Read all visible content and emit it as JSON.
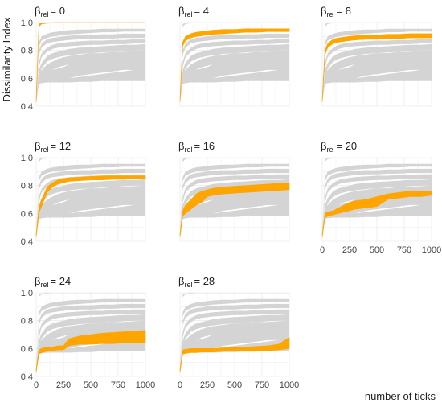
{
  "figure": {
    "ylabel": "Dissimilarity Index",
    "xlabel": "number of ticks"
  },
  "style": {
    "highlight_color": "#FFA500",
    "background_band_color": "#d4d4d4",
    "grid_color": "#ebebeb"
  },
  "chart_data": {
    "type": "area",
    "xlim": [
      0,
      1000
    ],
    "ylim": [
      0.4,
      1.0
    ],
    "x_ticks": [
      0,
      250,
      500,
      750,
      1000
    ],
    "y_ticks": [
      0.4,
      0.6,
      0.8,
      1.0
    ],
    "y_tick_labels": [
      "0.4",
      "0.6",
      "0.8",
      "1.0"
    ],
    "x": [
      0,
      25,
      50,
      100,
      150,
      200,
      250,
      300,
      400,
      500,
      600,
      700,
      800,
      900,
      1000
    ],
    "background_bands": [
      {
        "lower": [
          0.43,
          0.97,
          0.99,
          0.995,
          0.997,
          0.998,
          0.998,
          0.999,
          0.999,
          0.999,
          0.999,
          0.999,
          0.999,
          0.999,
          0.999
        ],
        "upper": [
          0.45,
          0.99,
          0.995,
          0.998,
          0.999,
          1.0,
          1.0,
          1.0,
          1.0,
          1.0,
          1.0,
          1.0,
          1.0,
          1.0,
          1.0
        ]
      },
      {
        "lower": [
          0.43,
          0.83,
          0.87,
          0.89,
          0.9,
          0.905,
          0.91,
          0.915,
          0.92,
          0.925,
          0.93,
          0.93,
          0.935,
          0.935,
          0.935
        ],
        "upper": [
          0.45,
          0.86,
          0.9,
          0.92,
          0.93,
          0.935,
          0.94,
          0.945,
          0.95,
          0.95,
          0.955,
          0.955,
          0.955,
          0.955,
          0.955
        ]
      },
      {
        "lower": [
          0.43,
          0.77,
          0.82,
          0.85,
          0.86,
          0.865,
          0.87,
          0.875,
          0.88,
          0.88,
          0.885,
          0.885,
          0.89,
          0.89,
          0.89
        ],
        "upper": [
          0.45,
          0.8,
          0.85,
          0.88,
          0.89,
          0.895,
          0.9,
          0.905,
          0.91,
          0.91,
          0.915,
          0.915,
          0.92,
          0.92,
          0.92
        ]
      },
      {
        "lower": [
          0.43,
          0.68,
          0.75,
          0.79,
          0.81,
          0.82,
          0.825,
          0.83,
          0.835,
          0.84,
          0.84,
          0.845,
          0.845,
          0.85,
          0.85
        ],
        "upper": [
          0.45,
          0.72,
          0.78,
          0.82,
          0.84,
          0.85,
          0.855,
          0.86,
          0.865,
          0.87,
          0.87,
          0.875,
          0.875,
          0.88,
          0.88
        ]
      },
      {
        "lower": [
          0.43,
          0.62,
          0.67,
          0.72,
          0.74,
          0.75,
          0.76,
          0.765,
          0.775,
          0.78,
          0.785,
          0.79,
          0.795,
          0.8,
          0.8
        ],
        "upper": [
          0.45,
          0.66,
          0.71,
          0.76,
          0.78,
          0.79,
          0.8,
          0.81,
          0.82,
          0.825,
          0.83,
          0.835,
          0.84,
          0.84,
          0.845
        ]
      },
      {
        "lower": [
          0.43,
          0.6,
          0.61,
          0.63,
          0.66,
          0.68,
          0.69,
          0.7,
          0.71,
          0.72,
          0.72,
          0.73,
          0.73,
          0.735,
          0.74
        ],
        "upper": [
          0.45,
          0.64,
          0.66,
          0.7,
          0.72,
          0.74,
          0.75,
          0.76,
          0.77,
          0.78,
          0.78,
          0.79,
          0.79,
          0.795,
          0.8
        ]
      },
      {
        "lower": [
          0.43,
          0.58,
          0.59,
          0.6,
          0.61,
          0.62,
          0.63,
          0.64,
          0.66,
          0.67,
          0.68,
          0.69,
          0.69,
          0.7,
          0.7
        ],
        "upper": [
          0.45,
          0.61,
          0.62,
          0.64,
          0.66,
          0.67,
          0.68,
          0.7,
          0.72,
          0.73,
          0.74,
          0.75,
          0.75,
          0.76,
          0.76
        ]
      },
      {
        "lower": [
          0.43,
          0.57,
          0.575,
          0.58,
          0.58,
          0.58,
          0.58,
          0.6,
          0.62,
          0.63,
          0.64,
          0.65,
          0.66,
          0.66,
          0.66
        ],
        "upper": [
          0.45,
          0.6,
          0.61,
          0.62,
          0.63,
          0.64,
          0.64,
          0.66,
          0.68,
          0.69,
          0.7,
          0.71,
          0.71,
          0.72,
          0.72
        ]
      },
      {
        "lower": [
          0.43,
          0.56,
          0.565,
          0.57,
          0.57,
          0.57,
          0.57,
          0.57,
          0.575,
          0.575,
          0.58,
          0.58,
          0.58,
          0.58,
          0.58
        ],
        "upper": [
          0.45,
          0.6,
          0.6,
          0.6,
          0.6,
          0.6,
          0.6,
          0.6,
          0.61,
          0.62,
          0.63,
          0.64,
          0.65,
          0.66,
          0.67
        ]
      }
    ],
    "panels": [
      {
        "label_base": "β",
        "label_sub": "rel",
        "label_value": "= 0",
        "lower": [
          0.43,
          0.97,
          0.99,
          0.995,
          0.997,
          0.998,
          0.998,
          0.999,
          0.999,
          0.999,
          0.999,
          0.999,
          0.999,
          0.999,
          0.999
        ],
        "upper": [
          0.45,
          0.99,
          0.995,
          0.998,
          0.999,
          1.0,
          1.0,
          1.0,
          1.0,
          1.0,
          1.0,
          1.0,
          1.0,
          1.0,
          1.0
        ]
      },
      {
        "label_base": "β",
        "label_sub": "rel",
        "label_value": "= 4",
        "lower": [
          0.43,
          0.83,
          0.87,
          0.89,
          0.9,
          0.905,
          0.91,
          0.915,
          0.92,
          0.925,
          0.93,
          0.93,
          0.935,
          0.935,
          0.935
        ],
        "upper": [
          0.45,
          0.86,
          0.9,
          0.92,
          0.93,
          0.935,
          0.94,
          0.945,
          0.95,
          0.95,
          0.955,
          0.955,
          0.955,
          0.955,
          0.955
        ]
      },
      {
        "label_base": "β",
        "label_sub": "rel",
        "label_value": "= 8",
        "lower": [
          0.43,
          0.77,
          0.82,
          0.85,
          0.86,
          0.865,
          0.87,
          0.875,
          0.88,
          0.88,
          0.885,
          0.885,
          0.89,
          0.89,
          0.89
        ],
        "upper": [
          0.45,
          0.8,
          0.85,
          0.88,
          0.89,
          0.895,
          0.9,
          0.905,
          0.91,
          0.91,
          0.915,
          0.915,
          0.92,
          0.92,
          0.92
        ]
      },
      {
        "label_base": "β",
        "label_sub": "rel",
        "label_value": "= 12",
        "lower": [
          0.43,
          0.6,
          0.65,
          0.75,
          0.79,
          0.81,
          0.82,
          0.83,
          0.835,
          0.84,
          0.84,
          0.845,
          0.845,
          0.85,
          0.85
        ],
        "upper": [
          0.45,
          0.64,
          0.7,
          0.79,
          0.82,
          0.84,
          0.85,
          0.855,
          0.86,
          0.865,
          0.87,
          0.87,
          0.87,
          0.87,
          0.87
        ]
      },
      {
        "label_base": "β",
        "label_sub": "rel",
        "label_value": "= 16",
        "lower": [
          0.43,
          0.58,
          0.6,
          0.63,
          0.66,
          0.68,
          0.72,
          0.73,
          0.74,
          0.745,
          0.75,
          0.755,
          0.76,
          0.765,
          0.77
        ],
        "upper": [
          0.45,
          0.62,
          0.66,
          0.7,
          0.74,
          0.76,
          0.77,
          0.78,
          0.79,
          0.795,
          0.8,
          0.805,
          0.81,
          0.815,
          0.82
        ]
      },
      {
        "label_base": "β",
        "label_sub": "rel",
        "label_value": "= 20",
        "lower": [
          0.43,
          0.57,
          0.58,
          0.59,
          0.6,
          0.61,
          0.62,
          0.63,
          0.64,
          0.65,
          0.7,
          0.71,
          0.72,
          0.72,
          0.73
        ],
        "upper": [
          0.45,
          0.6,
          0.61,
          0.62,
          0.64,
          0.66,
          0.68,
          0.69,
          0.7,
          0.72,
          0.74,
          0.75,
          0.76,
          0.76,
          0.76
        ]
      },
      {
        "label_base": "β",
        "label_sub": "rel",
        "label_value": "= 24",
        "lower": [
          0.43,
          0.56,
          0.57,
          0.58,
          0.585,
          0.59,
          0.59,
          0.62,
          0.63,
          0.63,
          0.635,
          0.635,
          0.64,
          0.64,
          0.64
        ],
        "upper": [
          0.45,
          0.59,
          0.6,
          0.61,
          0.61,
          0.62,
          0.62,
          0.67,
          0.69,
          0.7,
          0.71,
          0.715,
          0.72,
          0.725,
          0.73
        ]
      },
      {
        "label_base": "β",
        "label_sub": "rel",
        "label_value": "= 28",
        "lower": [
          0.43,
          0.56,
          0.565,
          0.57,
          0.57,
          0.575,
          0.575,
          0.575,
          0.58,
          0.58,
          0.58,
          0.58,
          0.585,
          0.59,
          0.6
        ],
        "upper": [
          0.45,
          0.59,
          0.595,
          0.6,
          0.6,
          0.6,
          0.6,
          0.6,
          0.605,
          0.61,
          0.61,
          0.615,
          0.62,
          0.63,
          0.68
        ]
      }
    ]
  }
}
